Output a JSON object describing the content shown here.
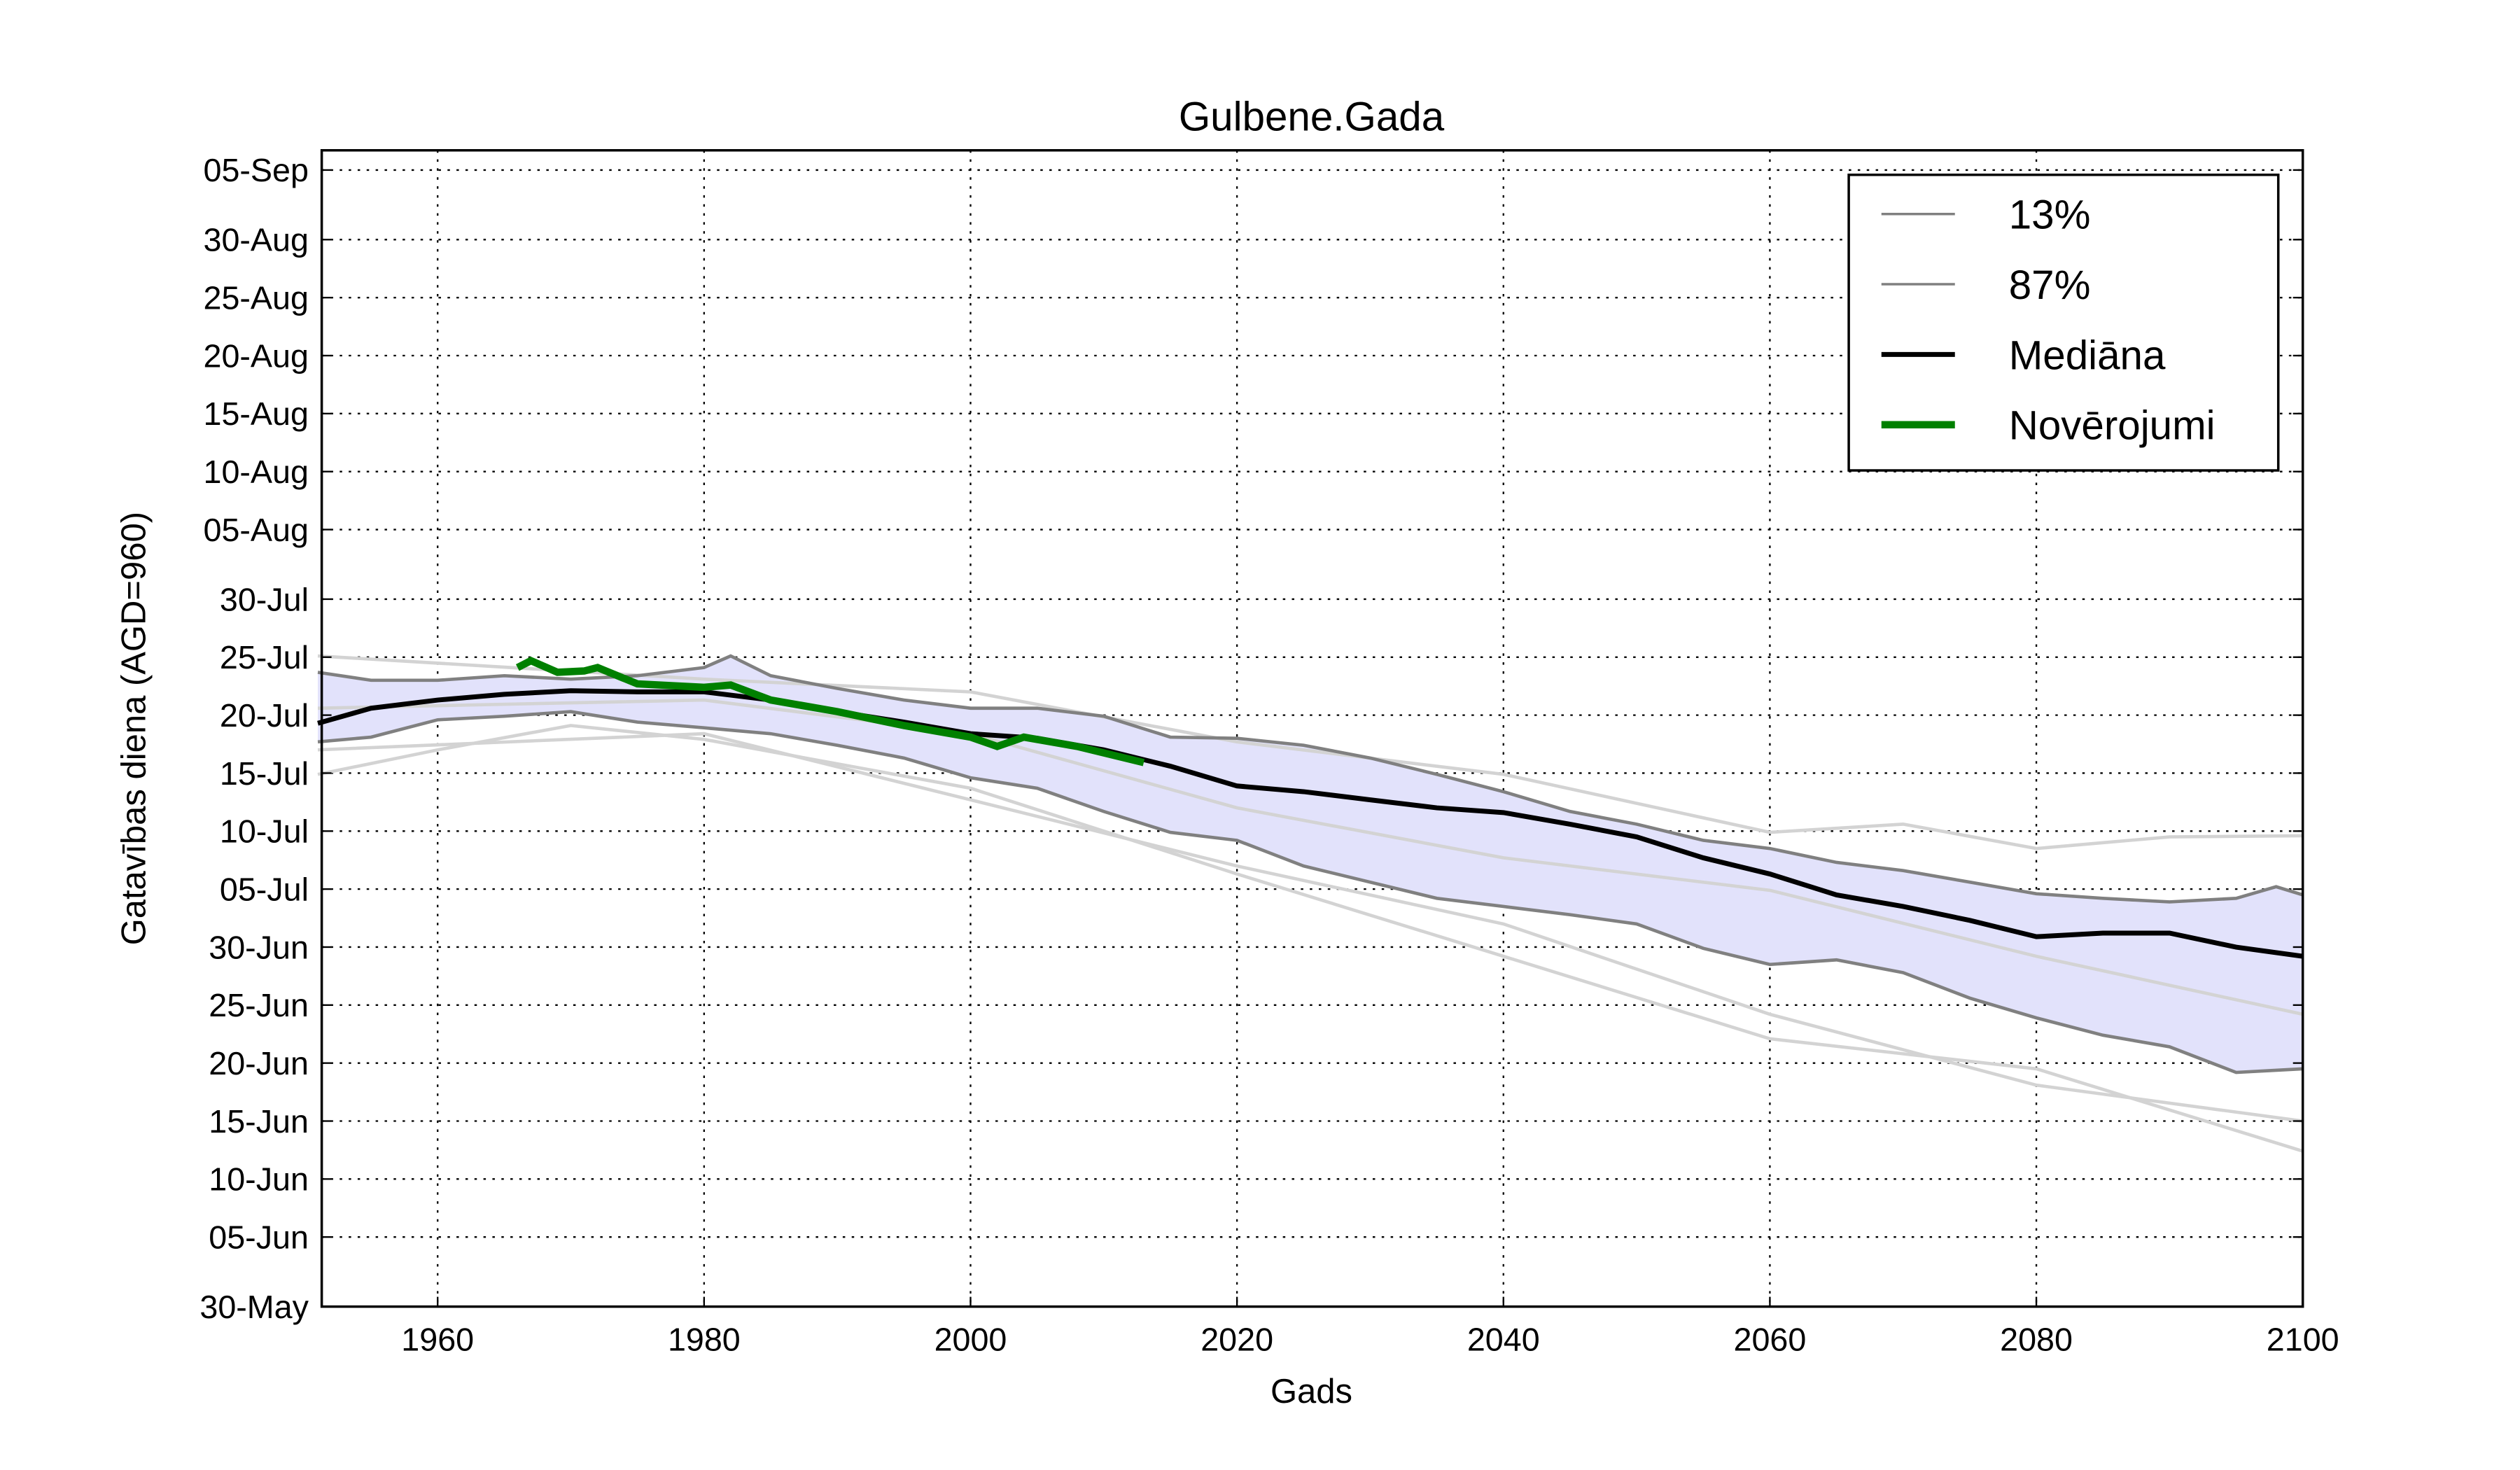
{
  "chart_data": {
    "type": "line",
    "title": "Gulbene.Gada",
    "xlabel": "Gads",
    "ylabel": "Gatavības diena (AGD=960)",
    "xlim": [
      1951.3,
      2100
    ],
    "ylim": [
      150,
      249.7
    ],
    "grid": true,
    "legend_placement": "top-right",
    "x_ticks": [
      1960,
      1980,
      2000,
      2020,
      2040,
      2060,
      2080,
      2100
    ],
    "y_ticks": [
      {
        "doy": 150,
        "label": "30-May"
      },
      {
        "doy": 156,
        "label": "05-Jun"
      },
      {
        "doy": 161,
        "label": "10-Jun"
      },
      {
        "doy": 166,
        "label": "15-Jun"
      },
      {
        "doy": 171,
        "label": "20-Jun"
      },
      {
        "doy": 176,
        "label": "25-Jun"
      },
      {
        "doy": 181,
        "label": "30-Jun"
      },
      {
        "doy": 186,
        "label": "05-Jul"
      },
      {
        "doy": 191,
        "label": "10-Jul"
      },
      {
        "doy": 196,
        "label": "15-Jul"
      },
      {
        "doy": 201,
        "label": "20-Jul"
      },
      {
        "doy": 206,
        "label": "25-Jul"
      },
      {
        "doy": 211,
        "label": "30-Jul"
      },
      {
        "doy": 217,
        "label": "05-Aug"
      },
      {
        "doy": 222,
        "label": "10-Aug"
      },
      {
        "doy": 227,
        "label": "15-Aug"
      },
      {
        "doy": 232,
        "label": "20-Aug"
      },
      {
        "doy": 237,
        "label": "25-Aug"
      },
      {
        "doy": 242,
        "label": "30-Aug"
      },
      {
        "doy": 248,
        "label": "05-Sep"
      }
    ],
    "colors": {
      "band_fill": "#e2e2fb",
      "band_line": "#808080",
      "median": "#000000",
      "obs": "#008000",
      "ensemble": "#d3d3d3"
    },
    "series": [
      {
        "name": "13%",
        "key": "p13",
        "x": [
          1951,
          1955,
          1960,
          1965,
          1970,
          1975,
          1980,
          1985,
          1990,
          1995,
          2000,
          2005,
          2010,
          2015,
          2020,
          2025,
          2030,
          2035,
          2040,
          2045,
          2050,
          2055,
          2060,
          2065,
          2070,
          2075,
          2080,
          2085,
          2090,
          2095,
          2100
        ],
        "y": [
          198.7,
          199.1,
          200.6,
          200.9,
          201.3,
          200.4,
          199.9,
          199.4,
          198.4,
          197.3,
          195.6,
          194.7,
          192.7,
          190.9,
          190.2,
          188,
          186.6,
          185.2,
          184.5,
          183.8,
          183,
          180.9,
          179.5,
          179.9,
          178.8,
          176.6,
          174.9,
          173.4,
          172.4,
          170.2,
          170.5
        ]
      },
      {
        "name": "87%",
        "key": "p87",
        "x": [
          1951,
          1955,
          1960,
          1965,
          1970,
          1975,
          1980,
          1982,
          1985,
          1990,
          1995,
          2000,
          2005,
          2010,
          2015,
          2020,
          2025,
          2030,
          2035,
          2040,
          2045,
          2050,
          2055,
          2060,
          2065,
          2070,
          2075,
          2080,
          2085,
          2090,
          2095,
          2098,
          2100
        ],
        "y": [
          204.7,
          204,
          204,
          204.4,
          204.1,
          204.4,
          205.1,
          206.1,
          204.4,
          203.3,
          202.3,
          201.6,
          201.6,
          200.9,
          199.1,
          199,
          198.4,
          197.3,
          195.9,
          194.4,
          192.7,
          191.6,
          190.2,
          189.5,
          188.3,
          187.6,
          186.6,
          185.6,
          185.2,
          184.9,
          185.2,
          186.2,
          185.5
        ]
      },
      {
        "name": "Mediāna",
        "key": "median",
        "x": [
          1951,
          1955,
          1960,
          1965,
          1970,
          1975,
          1980,
          1985,
          1990,
          1995,
          2000,
          2005,
          2010,
          2015,
          2020,
          2025,
          2030,
          2035,
          2040,
          2045,
          2050,
          2055,
          2060,
          2065,
          2070,
          2075,
          2080,
          2085,
          2090,
          2095,
          2100
        ],
        "y": [
          200.3,
          201.6,
          202.3,
          202.8,
          203.1,
          203,
          203,
          202.3,
          201.3,
          200.4,
          199.4,
          199,
          198,
          196.6,
          194.9,
          194.4,
          193.7,
          193,
          192.6,
          191.6,
          190.5,
          188.7,
          187.3,
          185.5,
          184.5,
          183.3,
          181.9,
          182.2,
          182.2,
          181,
          180.2
        ]
      },
      {
        "name": "Novērojumi",
        "key": "obs",
        "x": [
          1966,
          1967,
          1969,
          1971,
          1972,
          1975,
          1980,
          1982,
          1985,
          1990,
          1995,
          2000,
          2002,
          2004,
          2008,
          2013
        ],
        "y": [
          205.1,
          205.7,
          204.7,
          204.8,
          205.1,
          203.7,
          203.4,
          203.6,
          202.3,
          201.3,
          200.1,
          199.1,
          198.3,
          199.1,
          198.3,
          196.9
        ]
      }
    ],
    "ensemble": [
      {
        "x": [
          1951,
          1980,
          2000,
          2020,
          2040,
          2060,
          2070,
          2080,
          2090,
          2100
        ],
        "y": [
          206.1,
          204.1,
          203,
          198.7,
          195.9,
          190.9,
          191.6,
          189.5,
          190.5,
          190.6
        ]
      },
      {
        "x": [
          1951,
          1980,
          2000,
          2020,
          2040,
          2060,
          2080,
          2100
        ],
        "y": [
          201.6,
          202.3,
          199.4,
          193,
          188.7,
          185.9,
          180.2,
          175.2
        ]
      },
      {
        "x": [
          1951,
          1980,
          2000,
          2020,
          2040,
          2060,
          2080,
          2100
        ],
        "y": [
          198,
          199.4,
          193.7,
          188,
          183,
          175.2,
          169.1,
          166
        ]
      },
      {
        "x": [
          1951,
          1960,
          1970,
          1980,
          2000,
          2020,
          2040,
          2060,
          2080,
          2100
        ],
        "y": [
          195.9,
          198,
          200.1,
          198.9,
          194.7,
          187.3,
          180.2,
          173.1,
          170.5,
          163.4
        ]
      }
    ]
  }
}
